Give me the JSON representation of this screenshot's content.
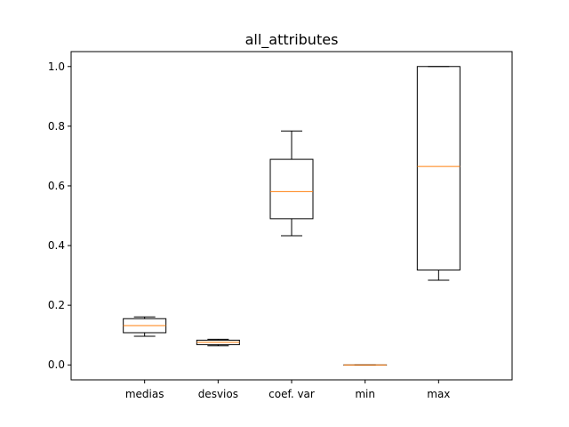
{
  "chart_data": {
    "type": "boxplot",
    "title": "all_attributes",
    "xlabel": "",
    "ylabel": "",
    "categories": [
      "medias",
      "desvios",
      "coef. var",
      "min",
      "max"
    ],
    "boxes": [
      {
        "name": "medias",
        "whisker_low": 0.096,
        "q1": 0.108,
        "median": 0.132,
        "q3": 0.155,
        "whisker_high": 0.161
      },
      {
        "name": "desvios",
        "whisker_low": 0.064,
        "q1": 0.068,
        "median": 0.076,
        "q3": 0.083,
        "whisker_high": 0.086
      },
      {
        "name": "coef. var",
        "whisker_low": 0.433,
        "q1": 0.49,
        "median": 0.581,
        "q3": 0.689,
        "whisker_high": 0.784
      },
      {
        "name": "min",
        "whisker_low": 0.0,
        "q1": 0.0,
        "median": 0.0,
        "q3": 0.0,
        "whisker_high": 0.0
      },
      {
        "name": "max",
        "whisker_low": 0.284,
        "q1": 0.318,
        "median": 0.665,
        "q3": 1.0,
        "whisker_high": 1.0
      }
    ],
    "ylim": [
      -0.05,
      1.05
    ],
    "yticks": [
      0.0,
      0.2,
      0.4,
      0.6,
      0.8,
      1.0
    ],
    "ytick_labels": [
      "0.0",
      "0.2",
      "0.4",
      "0.6",
      "0.8",
      "1.0"
    ],
    "grid": false,
    "colors": {
      "box": "#000000",
      "median": "#ff7f0e"
    }
  }
}
